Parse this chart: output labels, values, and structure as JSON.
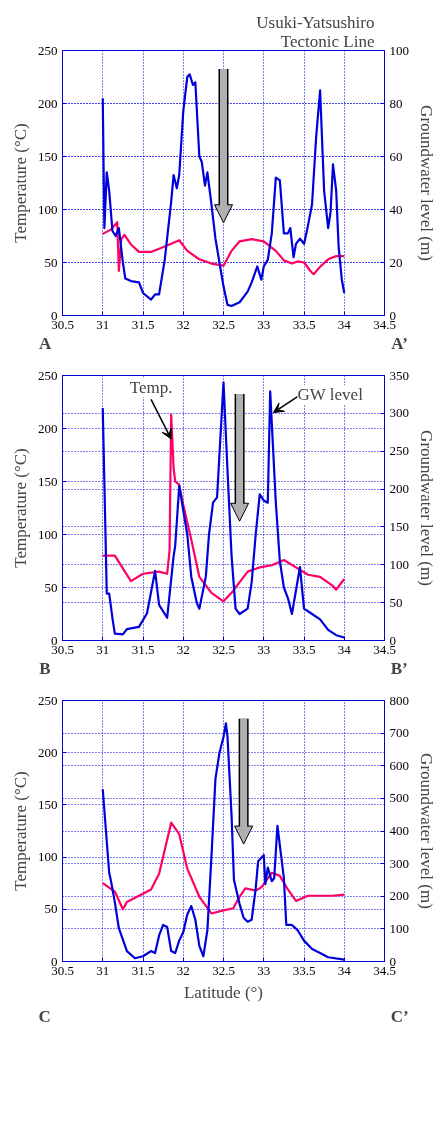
{
  "chart_data": [
    {
      "type": "line",
      "ylabel": "Temperature (°C)",
      "y2label": "Groundwater level (m)",
      "xlim": [
        30.5,
        34.5
      ],
      "xticks": [
        30.5,
        31,
        31.5,
        32,
        32.5,
        33,
        33.5,
        34,
        34.5
      ],
      "ylim": [
        0,
        250
      ],
      "yticks": [
        0,
        50,
        100,
        150,
        200,
        250
      ],
      "y2lim": [
        0,
        100
      ],
      "y2ticks": [
        0,
        20,
        40,
        60,
        80,
        100
      ],
      "grid": true,
      "line_style": "solid",
      "marker": "none",
      "annotations": [
        "A",
        "A’"
      ],
      "ref_lines": [
        {
          "axis": "x",
          "value": 32.5,
          "label": "Usuki-Yatsushiro Tectonic Line",
          "color": "#b0b0b0"
        }
      ],
      "series": [
        {
          "color": "#ff0066",
          "x": [
            31.0,
            31.1,
            31.18,
            31.2,
            31.23,
            31.27,
            31.35,
            31.45,
            31.6,
            31.8,
            31.95,
            32.05,
            32.2,
            32.35,
            32.5,
            32.6,
            32.7,
            32.85,
            33.0,
            33.15,
            33.25,
            33.35,
            33.42,
            33.5,
            33.58,
            33.62,
            33.7,
            33.8,
            33.9,
            34.0
          ],
          "values": [
            77,
            81,
            88,
            42,
            72,
            76,
            67,
            60,
            60,
            66,
            71,
            61,
            53,
            49,
            47,
            61,
            70,
            72,
            70,
            61,
            52,
            49,
            51,
            50,
            42,
            39,
            46,
            53,
            56,
            56
          ]
        },
        {
          "color": "#0000dd",
          "axis": "y2",
          "x": [
            31.0,
            31.02,
            31.05,
            31.08,
            31.12,
            31.16,
            31.2,
            31.25,
            31.28,
            31.35,
            31.45,
            31.5,
            31.6,
            31.65,
            31.7,
            31.77,
            31.85,
            31.88,
            31.92,
            31.95,
            32.0,
            32.05,
            32.08,
            32.12,
            32.15,
            32.2,
            32.23,
            32.27,
            32.3,
            32.35,
            32.4,
            32.45,
            32.5,
            32.55,
            32.6,
            32.7,
            32.8,
            32.85,
            32.92,
            32.97,
            33.0,
            33.05,
            33.1,
            33.15,
            33.2,
            33.25,
            33.3,
            33.33,
            33.37,
            33.4,
            33.45,
            33.5,
            33.55,
            33.6,
            33.65,
            33.7,
            33.75,
            33.8,
            33.83,
            33.86,
            33.9,
            33.93,
            33.97,
            34.0
          ],
          "values": [
            82,
            33,
            54,
            47,
            32,
            30,
            33,
            20,
            14,
            13,
            12.5,
            8.5,
            6,
            8,
            8,
            21,
            43,
            53,
            48,
            53,
            77,
            90,
            91,
            87,
            88,
            60,
            58,
            49,
            54,
            42,
            29,
            20,
            11,
            4,
            3.6,
            5,
            9,
            12.5,
            18.5,
            13.5,
            18.5,
            21,
            31,
            52,
            51,
            31,
            31,
            33,
            22,
            27,
            29,
            27,
            34,
            42,
            67,
            85,
            47,
            33,
            39,
            57,
            47,
            26,
            13.5,
            8.5
          ]
        }
      ]
    },
    {
      "type": "line",
      "ylabel": "Temperature (°C)",
      "y2label": "Groundwater level (m)",
      "xlim": [
        30.5,
        34.5
      ],
      "xticks": [
        30.5,
        31,
        31.5,
        32,
        32.5,
        33,
        33.5,
        34,
        34.5
      ],
      "ylim": [
        0,
        250
      ],
      "yticks": [
        0,
        50,
        100,
        150,
        200,
        250
      ],
      "y2lim": [
        0,
        350
      ],
      "y2ticks": [
        0,
        50,
        100,
        150,
        200,
        250,
        300,
        350
      ],
      "grid": true,
      "line_style": "solid",
      "marker": "none",
      "annotations": [
        "B",
        "B’",
        {
          "text": "Temp.",
          "x": 31.85,
          "y": 190
        },
        {
          "text": "GW level",
          "x": 33.12,
          "y": 215
        }
      ],
      "ref_lines": [
        {
          "axis": "x",
          "value": 32.7,
          "label": null,
          "color": "#b0b0b0"
        }
      ],
      "series": [
        {
          "color": "#ff0066",
          "x": [
            31.0,
            31.15,
            31.35,
            31.5,
            31.7,
            31.8,
            31.83,
            31.85,
            31.88,
            31.9,
            31.95,
            32.0,
            32.1,
            32.2,
            32.35,
            32.5,
            32.6,
            32.8,
            32.95,
            33.1,
            33.25,
            33.4,
            33.55,
            33.7,
            33.85,
            33.9,
            34.0
          ],
          "values": [
            80,
            80,
            56,
            63,
            65,
            63,
            85,
            213,
            163,
            150,
            147,
            128,
            95,
            60,
            45,
            37,
            45,
            65,
            69,
            71,
            76,
            69,
            62,
            60,
            52,
            48,
            58
          ]
        },
        {
          "color": "#0000dd",
          "axis": "y2",
          "x": [
            31.0,
            31.05,
            31.08,
            31.12,
            31.15,
            31.25,
            31.3,
            31.45,
            31.55,
            31.65,
            31.7,
            31.8,
            31.88,
            31.9,
            31.95,
            32.05,
            32.1,
            32.17,
            32.2,
            32.28,
            32.32,
            32.37,
            32.42,
            32.5,
            32.55,
            32.6,
            32.65,
            32.7,
            32.8,
            32.85,
            32.9,
            32.95,
            33.0,
            33.05,
            33.08,
            33.15,
            33.2,
            33.25,
            33.3,
            33.35,
            33.45,
            33.5,
            33.6,
            33.7,
            33.8,
            33.9,
            34.0
          ],
          "values": [
            307,
            62,
            62,
            30,
            9,
            8,
            15,
            18,
            36,
            92,
            47,
            30,
            111,
            125,
            204,
            140,
            84,
            49,
            42,
            84,
            140,
            182,
            189,
            341,
            224,
            112,
            42,
            35,
            42,
            77,
            140,
            193,
            185,
            182,
            329,
            182,
            105,
            70,
            56,
            35,
            97,
            42,
            35,
            28,
            14,
            7,
            4
          ]
        }
      ]
    },
    {
      "type": "line",
      "xlabel": "Latitude (°)",
      "ylabel": "Temperature (°C)",
      "y2label": "Groundwater level (m)",
      "xlim": [
        30.5,
        34.5
      ],
      "xticks": [
        30.5,
        31,
        31.5,
        32,
        32.5,
        33,
        33.5,
        34,
        34.5
      ],
      "ylim": [
        0,
        250
      ],
      "yticks": [
        0,
        50,
        100,
        150,
        200,
        250
      ],
      "y2lim": [
        0,
        800
      ],
      "y2ticks": [
        0,
        100,
        200,
        300,
        400,
        500,
        600,
        700,
        800
      ],
      "grid": true,
      "line_style": "solid",
      "marker": "none",
      "annotations": [
        "C",
        "C’"
      ],
      "ref_lines": [
        {
          "axis": "x",
          "value": 32.75,
          "label": null,
          "color": "#b0b0b0"
        }
      ],
      "series": [
        {
          "color": "#ff0066",
          "x": [
            31.0,
            31.15,
            31.25,
            31.3,
            31.45,
            31.6,
            31.7,
            31.85,
            31.95,
            32.05,
            32.2,
            32.35,
            32.5,
            32.62,
            32.7,
            32.77,
            32.9,
            32.97,
            33.1,
            33.2,
            33.3,
            33.4,
            33.55,
            33.7,
            33.85,
            34.0
          ],
          "values": [
            75,
            67,
            50,
            57,
            63,
            69,
            84,
            133,
            122,
            89,
            62,
            46,
            49,
            51,
            62,
            70,
            68,
            71,
            85,
            82,
            69,
            58,
            63,
            63,
            63,
            64
          ]
        },
        {
          "color": "#0000dd",
          "axis": "y2",
          "x": [
            31.0,
            31.08,
            31.1,
            31.15,
            31.2,
            31.3,
            31.4,
            31.5,
            31.6,
            31.65,
            31.7,
            31.75,
            31.8,
            31.85,
            31.9,
            31.95,
            32.0,
            32.05,
            32.1,
            32.15,
            32.2,
            32.25,
            32.3,
            32.35,
            32.4,
            32.45,
            32.5,
            32.53,
            32.55,
            32.6,
            32.63,
            32.7,
            32.75,
            32.8,
            32.85,
            32.9,
            32.93,
            33.0,
            33.02,
            33.05,
            33.1,
            33.13,
            33.17,
            33.25,
            33.28,
            33.35,
            33.42,
            33.5,
            33.6,
            33.7,
            33.8,
            34.0
          ],
          "values": [
            528,
            272,
            250,
            182,
            102,
            32,
            10,
            16,
            32,
            26,
            80,
            112,
            106,
            32,
            26,
            64,
            90,
            144,
            170,
            128,
            48,
            16,
            96,
            320,
            560,
            640,
            688,
            730,
            688,
            448,
            250,
            176,
            134,
            122,
            128,
            224,
            307,
            326,
            237,
            288,
            246,
            256,
            416,
            256,
            112,
            112,
            96,
            64,
            38,
            26,
            13,
            6
          ]
        }
      ]
    }
  ]
}
